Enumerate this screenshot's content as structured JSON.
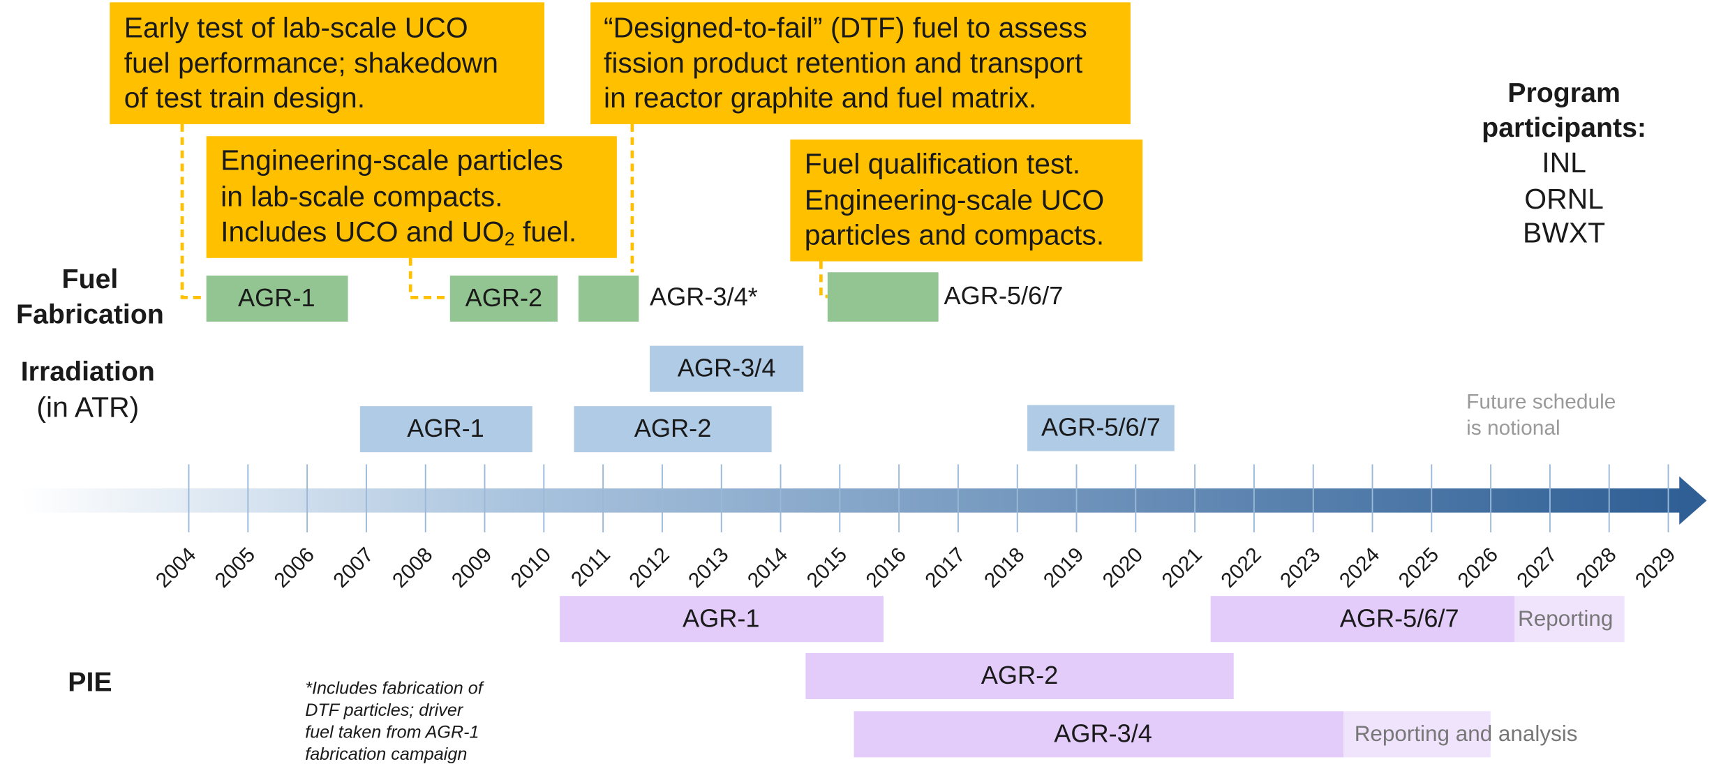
{
  "callouts": [
    {
      "lines": [
        "Early test of lab-scale UCO",
        "fuel performance; shakedown",
        "of test train design."
      ]
    },
    {
      "lines": [
        "Engineering-scale particles",
        "in lab-scale compacts."
      ],
      "last": {
        "text": "Includes UCO and UO",
        "sub": "2",
        "after": " fuel."
      }
    },
    {
      "lines": [
        "“Designed-to-fail” (DTF) fuel to assess",
        "fission product retention and transport",
        "in reactor graphite and fuel matrix."
      ]
    },
    {
      "lines": [
        "Fuel qualification test.",
        "Engineering-scale UCO",
        "particles and compacts."
      ]
    }
  ],
  "participants": {
    "title": [
      "Program",
      "participants:"
    ],
    "names": [
      "INL",
      "ORNL",
      "BWXT"
    ]
  },
  "fabrication": {
    "label": [
      "Fuel",
      "Fabrication"
    ],
    "bars": [
      "AGR-1",
      "AGR-2",
      "AGR-3/4*",
      "AGR-5/6/7"
    ]
  },
  "irradiation": {
    "label": "Irradiation",
    "sublabel": "(in ATR)",
    "bars": [
      "AGR-3/4",
      "AGR-1",
      "AGR-2",
      "AGR-5/6/7"
    ]
  },
  "notional": [
    "Future schedule",
    "is notional"
  ],
  "years": [
    2004,
    2005,
    2006,
    2007,
    2008,
    2009,
    2010,
    2011,
    2012,
    2013,
    2014,
    2015,
    2016,
    2017,
    2018,
    2019,
    2020,
    2021,
    2022,
    2023,
    2024,
    2025,
    2026,
    2027,
    2028,
    2029
  ],
  "pie": {
    "label": "PIE",
    "bars": [
      "AGR-1",
      "AGR-5/6/7",
      "Reporting",
      "AGR-2",
      "AGR-3/4",
      "Reporting and analysis"
    ]
  },
  "note": [
    "*Includes fabrication of",
    "DTF particles; driver",
    "fuel taken from AGR-1",
    "fabrication campaign"
  ]
}
